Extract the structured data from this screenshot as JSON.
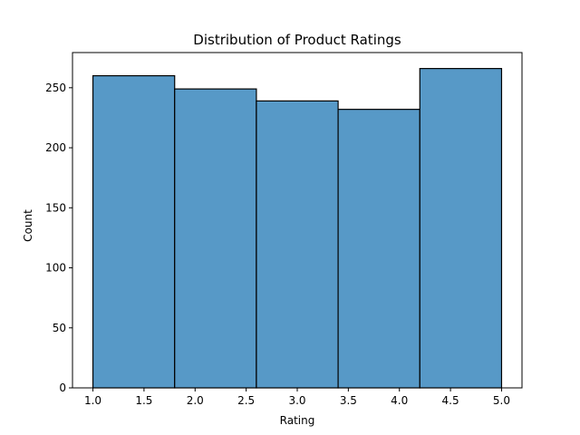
{
  "chart_data": {
    "type": "bar",
    "title": "Distribution of Product Ratings",
    "xlabel": "Rating",
    "ylabel": "Count",
    "bins": [
      {
        "start": 1.0,
        "end": 1.8,
        "count": 260
      },
      {
        "start": 1.8,
        "end": 2.6,
        "count": 249
      },
      {
        "start": 2.6,
        "end": 3.4,
        "count": 239
      },
      {
        "start": 3.4,
        "end": 4.2,
        "count": 232
      },
      {
        "start": 4.2,
        "end": 5.0,
        "count": 266
      }
    ],
    "xlim": [
      0.8,
      5.2
    ],
    "ylim": [
      0,
      279.3
    ],
    "xticks": [
      1.0,
      1.5,
      2.0,
      2.5,
      3.0,
      3.5,
      4.0,
      4.5,
      5.0
    ],
    "xtick_labels": [
      "1.0",
      "1.5",
      "2.0",
      "2.5",
      "3.0",
      "3.5",
      "4.0",
      "4.5",
      "5.0"
    ],
    "yticks": [
      0,
      50,
      100,
      150,
      200,
      250
    ],
    "ytick_labels": [
      "0",
      "50",
      "100",
      "150",
      "200",
      "250"
    ],
    "bar_color": "#5799c7",
    "edge_color": "#000000",
    "grid": false,
    "legend": false
  }
}
